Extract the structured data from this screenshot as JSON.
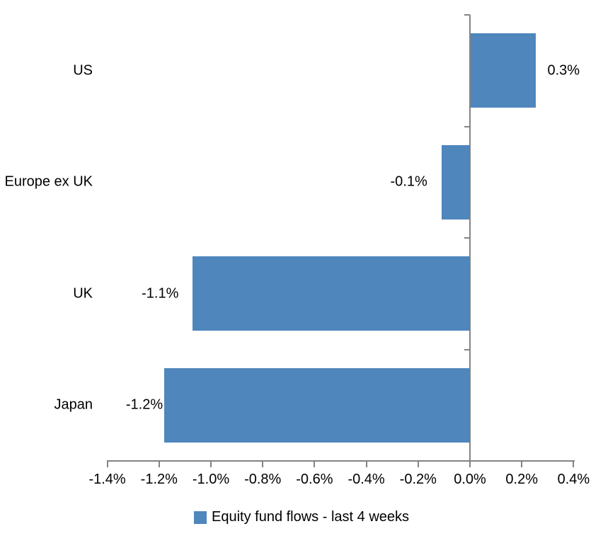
{
  "chart_data": {
    "type": "bar",
    "orientation": "horizontal",
    "categories": [
      "US",
      "Europe ex UK",
      "UK",
      "Japan"
    ],
    "values": [
      0.3,
      -0.1,
      -1.1,
      -1.2
    ],
    "values_precise": [
      0.25,
      -0.11,
      -1.07,
      -1.18
    ],
    "value_labels": [
      "0.3%",
      "-0.1%",
      "-1.1%",
      "-1.2%"
    ],
    "xlim": [
      -1.4,
      0.4
    ],
    "x_tick_step": 0.2,
    "x_tick_values": [
      -1.4,
      -1.2,
      -1.0,
      -0.8,
      -0.6,
      -0.4,
      -0.2,
      0.0,
      0.2,
      0.4
    ],
    "x_tick_labels": [
      "-1.4%",
      "-1.2%",
      "-1.0%",
      "-0.8%",
      "-0.6%",
      "-0.4%",
      "-0.2%",
      "0.0%",
      "0.2%",
      "0.4%"
    ],
    "grid": false,
    "legend": {
      "label": "Equity fund flows - last 4 weeks",
      "position": "bottom"
    },
    "colors": {
      "bar": "#4F86BC",
      "axis": "#848484",
      "text": "#000000",
      "background": "#FFFFFF"
    }
  }
}
